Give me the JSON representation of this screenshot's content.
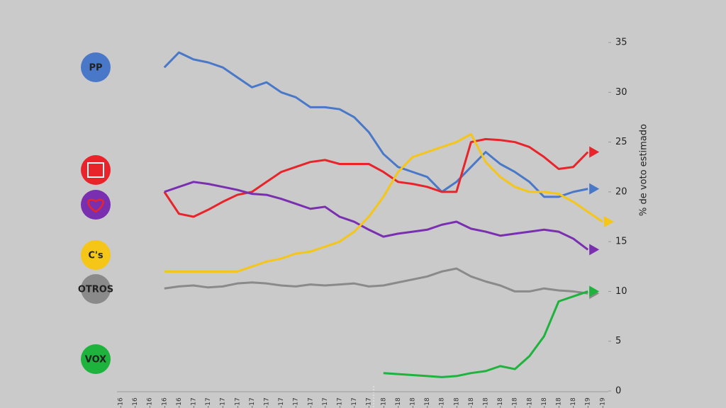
{
  "chart_data": {
    "type": "line",
    "y_axis_label": "% de voto estimado",
    "categories": [
      "-16",
      "-16",
      "-16",
      "-16",
      "-16",
      "-17",
      "-17",
      "-17",
      "-17",
      "-17",
      "-17",
      "-17",
      "-17",
      "-17",
      "-17",
      "-17",
      "-17",
      "-17",
      "-18",
      "-18",
      "-18",
      "-18",
      "-18",
      "-18",
      "-18",
      "-18",
      "-18",
      "-18",
      "-18",
      "-18",
      "-18",
      "-18",
      "-19",
      "-19"
    ],
    "ylim": [
      0,
      35
    ],
    "yticks": [
      0,
      5,
      10,
      15,
      20,
      25,
      30,
      35
    ],
    "series": [
      {
        "logo_text": "PP",
        "color": "#4a78c8",
        "values": [
          null,
          null,
          null,
          32.5,
          34,
          33.3,
          33,
          32.5,
          31.5,
          30.5,
          31,
          30,
          29.5,
          28.5,
          28.5,
          28.3,
          27.5,
          26,
          23.8,
          22.5,
          22,
          21.5,
          20,
          21,
          22.5,
          24,
          22.8,
          22,
          21,
          19.5,
          19.5,
          20,
          20.3,
          null
        ]
      },
      {
        "color": "#e8242a",
        "values": [
          null,
          null,
          null,
          20,
          17.8,
          17.5,
          18.2,
          19,
          19.7,
          20,
          21,
          22,
          22.5,
          23,
          23.2,
          22.8,
          22.8,
          22.8,
          22,
          21,
          20.8,
          20.5,
          20,
          20,
          25,
          25.3,
          25.2,
          25,
          24.5,
          23.5,
          22.3,
          22.5,
          24,
          null
        ]
      },
      {
        "color": "#7a2fb0",
        "values": [
          null,
          null,
          null,
          20,
          20.5,
          21,
          20.8,
          20.5,
          20.2,
          19.8,
          19.7,
          19.3,
          18.8,
          18.3,
          18.5,
          17.5,
          17,
          16.2,
          15.5,
          15.8,
          16,
          16.2,
          16.7,
          17,
          16.3,
          16,
          15.6,
          15.8,
          16,
          16.2,
          16,
          15.3,
          14.2,
          null
        ]
      },
      {
        "logo_text": "C's",
        "color": "#f5c518",
        "values": [
          null,
          null,
          null,
          12,
          12,
          12,
          12,
          12,
          12,
          12.5,
          13,
          13.3,
          13.8,
          14,
          14.5,
          15,
          16,
          17.5,
          19.5,
          22,
          23.5,
          24,
          24.5,
          25,
          25.8,
          23,
          21.5,
          20.5,
          20,
          20,
          19.8,
          19,
          18,
          17
        ]
      },
      {
        "logo_text": "OTROS",
        "color": "#8a8a8a",
        "values": [
          null,
          null,
          null,
          10.3,
          10.5,
          10.6,
          10.4,
          10.5,
          10.8,
          10.9,
          10.8,
          10.6,
          10.5,
          10.7,
          10.6,
          10.7,
          10.8,
          10.5,
          10.6,
          10.9,
          11.2,
          11.5,
          12,
          12.3,
          11.5,
          11,
          10.6,
          10,
          10,
          10.3,
          10.1,
          10,
          9.8,
          null
        ]
      },
      {
        "logo_text": "VOX",
        "color": "#1db33c",
        "values": [
          null,
          null,
          null,
          null,
          null,
          null,
          null,
          null,
          null,
          null,
          null,
          null,
          null,
          null,
          null,
          null,
          null,
          null,
          1.8,
          1.7,
          1.6,
          1.5,
          1.4,
          1.5,
          1.8,
          2,
          2.5,
          2.2,
          3.5,
          5.5,
          9,
          9.5,
          10,
          null
        ]
      }
    ]
  }
}
